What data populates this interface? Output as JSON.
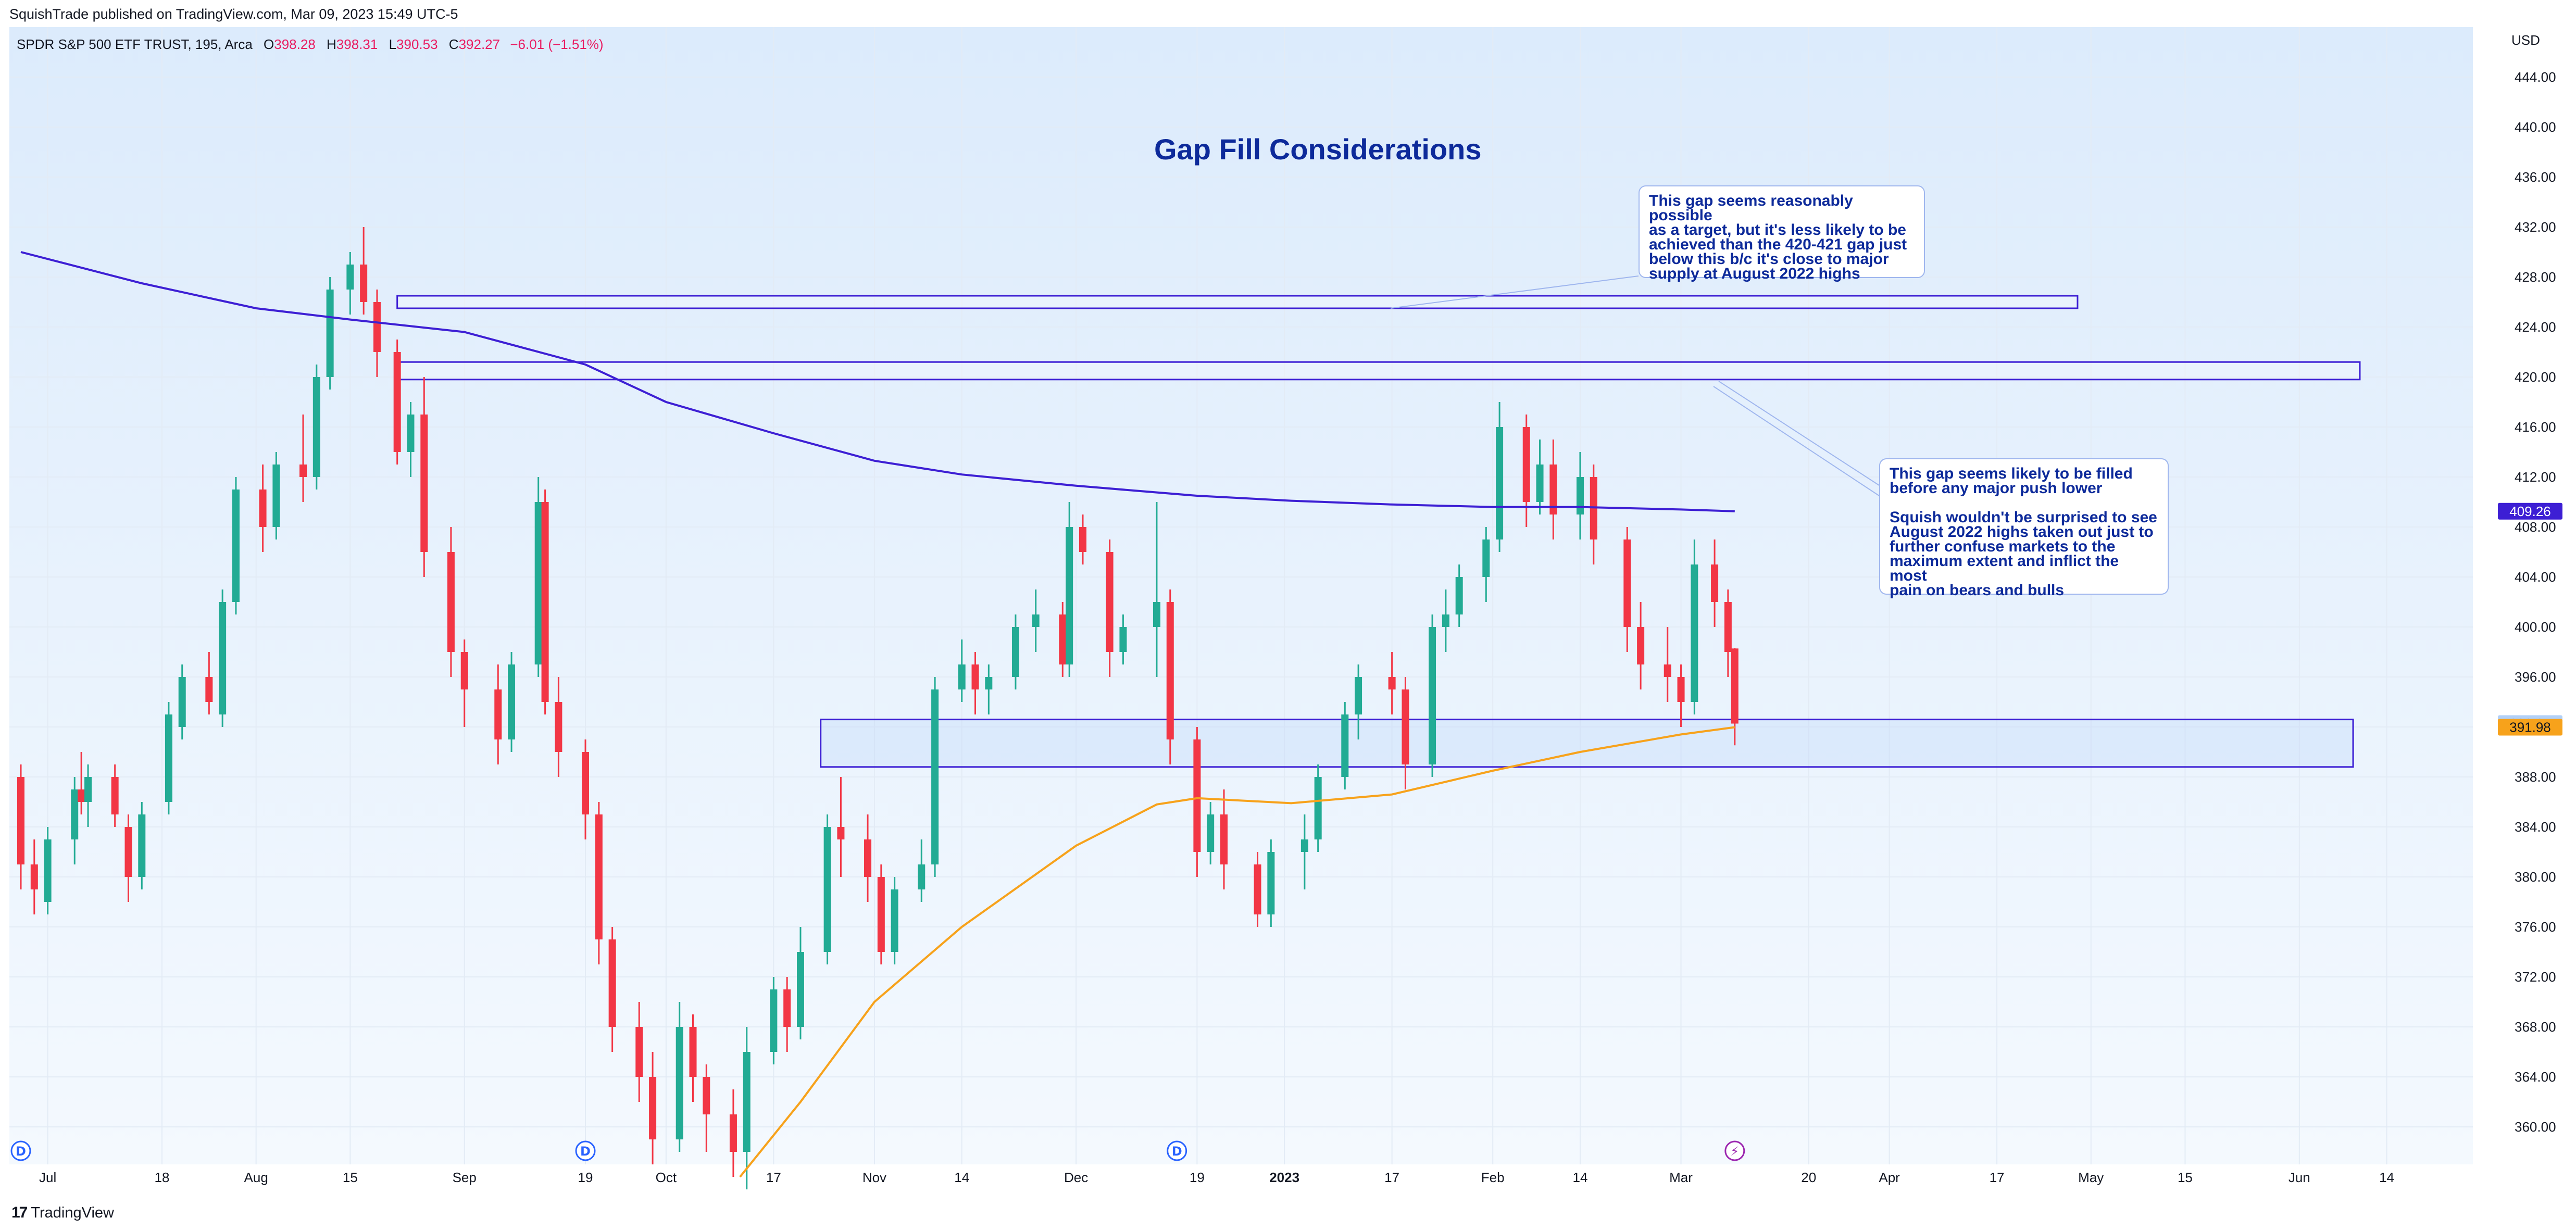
{
  "header": {
    "published": "SquishTrade published on TradingView.com, Mar 09, 2023 15:49 UTC-5"
  },
  "legend": {
    "symbol": "SPDR S&P 500 ETF TRUST, 195, Arca",
    "o_label": "O",
    "o": "398.28",
    "h_label": "H",
    "h": "398.31",
    "l_label": "L",
    "l": "390.53",
    "c_label": "C",
    "c": "392.27",
    "change": "−6.01 (−1.51%)"
  },
  "footer": {
    "brand": "TradingView",
    "logo": "17"
  },
  "colors": {
    "up": "#22ab94",
    "down": "#f23645",
    "ma_long": "#3d1fd4",
    "ma_short": "#f7a21b",
    "box": "#3d1fd4",
    "annotation": "#0d2a9a"
  },
  "annotations": {
    "note1": "This gap seems reasonably possible\nas a target, but it's less likely to be\nachieved than the 420-421 gap just\nbelow this b/c it's close to major\nsupply at August 2022 highs",
    "note2": "This gap seems likely to be filled\nbefore any major push lower\n\nSquish wouldn't be surprised to see\nAugust 2022 highs taken out just to\nfurther confuse markets to the\nmaximum extent and inflict the most\npain on bears and bulls"
  },
  "chart_data": {
    "type": "candlestick",
    "title": "Gap Fill Considerations",
    "currency": "USD",
    "ylim": [
      357,
      448
    ],
    "y_ticks": [
      "360.00",
      "364.00",
      "368.00",
      "372.00",
      "376.00",
      "380.00",
      "384.00",
      "388.00",
      "392.00",
      "396.00",
      "400.00",
      "404.00",
      "408.00",
      "412.00",
      "416.00",
      "420.00",
      "424.00",
      "428.00",
      "432.00",
      "436.00",
      "440.00",
      "444.00"
    ],
    "x_ticks": [
      {
        "label": "Jul",
        "date": "2022-07-01"
      },
      {
        "label": "18",
        "date": "2022-07-18"
      },
      {
        "label": "Aug",
        "date": "2022-08-01"
      },
      {
        "label": "15",
        "date": "2022-08-15"
      },
      {
        "label": "Sep",
        "date": "2022-09-01"
      },
      {
        "label": "19",
        "date": "2022-09-19"
      },
      {
        "label": "Oct",
        "date": "2022-10-01"
      },
      {
        "label": "17",
        "date": "2022-10-17"
      },
      {
        "label": "Nov",
        "date": "2022-11-01"
      },
      {
        "label": "14",
        "date": "2022-11-14"
      },
      {
        "label": "Dec",
        "date": "2022-12-01"
      },
      {
        "label": "19",
        "date": "2022-12-19"
      },
      {
        "label": "2023",
        "date": "2023-01-01",
        "bold": true
      },
      {
        "label": "17",
        "date": "2023-01-17"
      },
      {
        "label": "Feb",
        "date": "2023-02-01"
      },
      {
        "label": "14",
        "date": "2023-02-14"
      },
      {
        "label": "Mar",
        "date": "2023-03-01"
      },
      {
        "label": "20",
        "date": "2023-03-20"
      },
      {
        "label": "Apr",
        "date": "2023-04-01"
      },
      {
        "label": "17",
        "date": "2023-04-17"
      },
      {
        "label": "May",
        "date": "2023-05-01"
      },
      {
        "label": "15",
        "date": "2023-05-15"
      },
      {
        "label": "Jun",
        "date": "2023-06-01"
      },
      {
        "label": "14",
        "date": "2023-06-14"
      }
    ],
    "price_labels": [
      {
        "value": "409.26",
        "y": 409.26,
        "bg": "#3d1fd4",
        "fg": "#ffffff"
      },
      {
        "value": "392.27",
        "y": 392.27,
        "bg": "#b2d0f7",
        "fg": "#131722"
      },
      {
        "value": "391.98",
        "y": 391.98,
        "bg": "#f7a21b",
        "fg": "#131722"
      }
    ],
    "event_markers": [
      {
        "label": "D",
        "date": "2022-06-27"
      },
      {
        "label": "D",
        "date": "2022-09-19"
      },
      {
        "label": "D",
        "date": "2022-12-16"
      },
      {
        "label": "⚡",
        "date": "2023-03-09"
      }
    ],
    "gap_zones": [
      {
        "date_from": "2022-08-22",
        "date_to": "2023-04-29",
        "y_top": 426.5,
        "y_bottom": 425.5
      },
      {
        "date_from": "2022-08-22",
        "date_to": "2023-06-10",
        "y_top": 421.2,
        "y_bottom": 419.8
      },
      {
        "date_from": "2022-10-24",
        "date_to": "2023-06-09",
        "y_top": 392.6,
        "y_bottom": 388.8
      }
    ],
    "candles": [
      [
        "2022-06-27",
        388,
        389,
        379,
        381
      ],
      [
        "2022-06-29",
        381,
        383,
        377,
        379
      ],
      [
        "2022-07-01",
        378,
        384,
        377,
        383
      ],
      [
        "2022-07-05",
        383,
        388,
        381,
        387
      ],
      [
        "2022-07-06",
        387,
        390,
        385,
        386
      ],
      [
        "2022-07-07",
        386,
        389,
        384,
        388
      ],
      [
        "2022-07-11",
        388,
        389,
        384,
        385
      ],
      [
        "2022-07-13",
        384,
        385,
        378,
        380
      ],
      [
        "2022-07-15",
        380,
        386,
        379,
        385
      ],
      [
        "2022-07-19",
        386,
        394,
        385,
        393
      ],
      [
        "2022-07-21",
        392,
        397,
        391,
        396
      ],
      [
        "2022-07-25",
        396,
        398,
        393,
        394
      ],
      [
        "2022-07-27",
        393,
        403,
        392,
        402
      ],
      [
        "2022-07-29",
        402,
        412,
        401,
        411
      ],
      [
        "2022-08-02",
        411,
        413,
        406,
        408
      ],
      [
        "2022-08-04",
        408,
        414,
        407,
        413
      ],
      [
        "2022-08-08",
        413,
        417,
        410,
        412
      ],
      [
        "2022-08-10",
        412,
        421,
        411,
        420
      ],
      [
        "2022-08-12",
        420,
        428,
        419,
        427
      ],
      [
        "2022-08-15",
        427,
        430,
        425,
        429
      ],
      [
        "2022-08-17",
        429,
        432,
        425,
        426
      ],
      [
        "2022-08-19",
        426,
        427,
        420,
        422
      ],
      [
        "2022-08-22",
        422,
        423,
        413,
        414
      ],
      [
        "2022-08-24",
        414,
        418,
        412,
        417
      ],
      [
        "2022-08-26",
        417,
        420,
        404,
        406
      ],
      [
        "2022-08-30",
        406,
        408,
        396,
        398
      ],
      [
        "2022-09-01",
        398,
        399,
        392,
        395
      ],
      [
        "2022-09-06",
        395,
        397,
        389,
        391
      ],
      [
        "2022-09-08",
        391,
        398,
        390,
        397
      ],
      [
        "2022-09-12",
        397,
        412,
        396,
        410
      ],
      [
        "2022-09-13",
        410,
        411,
        393,
        394
      ],
      [
        "2022-09-15",
        394,
        396,
        388,
        390
      ],
      [
        "2022-09-19",
        390,
        391,
        383,
        385
      ],
      [
        "2022-09-21",
        385,
        386,
        373,
        375
      ],
      [
        "2022-09-23",
        375,
        376,
        366,
        368
      ],
      [
        "2022-09-27",
        368,
        370,
        362,
        364
      ],
      [
        "2022-09-29",
        364,
        366,
        357,
        359
      ],
      [
        "2022-10-03",
        359,
        370,
        358,
        368
      ],
      [
        "2022-10-05",
        368,
        369,
        362,
        364
      ],
      [
        "2022-10-07",
        364,
        365,
        358,
        361
      ],
      [
        "2022-10-11",
        361,
        363,
        356,
        358
      ],
      [
        "2022-10-13",
        358,
        368,
        355,
        366
      ],
      [
        "2022-10-17",
        366,
        372,
        365,
        371
      ],
      [
        "2022-10-19",
        371,
        372,
        366,
        368
      ],
      [
        "2022-10-21",
        368,
        376,
        367,
        374
      ],
      [
        "2022-10-25",
        374,
        385,
        373,
        384
      ],
      [
        "2022-10-27",
        384,
        388,
        380,
        383
      ],
      [
        "2022-10-31",
        383,
        385,
        378,
        380
      ],
      [
        "2022-11-02",
        380,
        381,
        373,
        374
      ],
      [
        "2022-11-04",
        374,
        380,
        373,
        379
      ],
      [
        "2022-11-08",
        379,
        383,
        378,
        381
      ],
      [
        "2022-11-10",
        381,
        396,
        380,
        395
      ],
      [
        "2022-11-14",
        395,
        399,
        394,
        397
      ],
      [
        "2022-11-16",
        397,
        398,
        393,
        395
      ],
      [
        "2022-11-18",
        395,
        397,
        393,
        396
      ],
      [
        "2022-11-22",
        396,
        401,
        395,
        400
      ],
      [
        "2022-11-25",
        400,
        403,
        398,
        401
      ],
      [
        "2022-11-29",
        401,
        402,
        396,
        397
      ],
      [
        "2022-11-30",
        397,
        410,
        396,
        408
      ],
      [
        "2022-12-02",
        408,
        409,
        405,
        406
      ],
      [
        "2022-12-06",
        406,
        407,
        396,
        398
      ],
      [
        "2022-12-08",
        398,
        401,
        397,
        400
      ],
      [
        "2022-12-13",
        400,
        410,
        396,
        402
      ],
      [
        "2022-12-15",
        402,
        403,
        389,
        391
      ],
      [
        "2022-12-19",
        391,
        392,
        380,
        382
      ],
      [
        "2022-12-21",
        382,
        386,
        381,
        385
      ],
      [
        "2022-12-23",
        385,
        387,
        379,
        381
      ],
      [
        "2022-12-28",
        381,
        382,
        376,
        377
      ],
      [
        "2022-12-30",
        377,
        383,
        376,
        382
      ],
      [
        "2023-01-04",
        382,
        385,
        379,
        383
      ],
      [
        "2023-01-06",
        383,
        389,
        382,
        388
      ],
      [
        "2023-01-10",
        388,
        394,
        387,
        393
      ],
      [
        "2023-01-12",
        393,
        397,
        391,
        396
      ],
      [
        "2023-01-17",
        396,
        398,
        393,
        395
      ],
      [
        "2023-01-19",
        395,
        396,
        387,
        389
      ],
      [
        "2023-01-23",
        389,
        401,
        388,
        400
      ],
      [
        "2023-01-25",
        400,
        403,
        398,
        401
      ],
      [
        "2023-01-27",
        401,
        405,
        400,
        404
      ],
      [
        "2023-01-31",
        404,
        408,
        402,
        407
      ],
      [
        "2023-02-02",
        407,
        418,
        406,
        416
      ],
      [
        "2023-02-06",
        416,
        417,
        408,
        410
      ],
      [
        "2023-02-08",
        410,
        415,
        409,
        413
      ],
      [
        "2023-02-10",
        413,
        415,
        407,
        409
      ],
      [
        "2023-02-14",
        409,
        414,
        407,
        412
      ],
      [
        "2023-02-16",
        412,
        413,
        405,
        407
      ],
      [
        "2023-02-21",
        407,
        408,
        398,
        400
      ],
      [
        "2023-02-23",
        400,
        402,
        395,
        397
      ],
      [
        "2023-02-27",
        397,
        400,
        394,
        396
      ],
      [
        "2023-03-01",
        396,
        397,
        392,
        394
      ],
      [
        "2023-03-03",
        394,
        407,
        393,
        405
      ],
      [
        "2023-03-06",
        405,
        407,
        400,
        402
      ],
      [
        "2023-03-08",
        402,
        403,
        396,
        398
      ],
      [
        "2023-03-09",
        398.28,
        398.31,
        390.53,
        392.27
      ]
    ],
    "series": [
      {
        "name": "",
        "type": "line",
        "color": "#3d1fd4",
        "points": [
          [
            "2022-06-27",
            430
          ],
          [
            "2022-07-15",
            427.5
          ],
          [
            "2022-08-01",
            425.5
          ],
          [
            "2022-08-15",
            424.6
          ],
          [
            "2022-09-01",
            423.6
          ],
          [
            "2022-09-19",
            421
          ],
          [
            "2022-10-01",
            418
          ],
          [
            "2022-10-17",
            415.5
          ],
          [
            "2022-11-01",
            413.3
          ],
          [
            "2022-11-14",
            412.2
          ],
          [
            "2022-12-01",
            411.3
          ],
          [
            "2022-12-19",
            410.5
          ],
          [
            "2023-01-02",
            410.1
          ],
          [
            "2023-01-17",
            409.8
          ],
          [
            "2023-02-01",
            409.6
          ],
          [
            "2023-02-14",
            409.6
          ],
          [
            "2023-03-01",
            409.4
          ],
          [
            "2023-03-09",
            409.26
          ]
        ]
      },
      {
        "name": "",
        "type": "line",
        "color": "#f7a21b",
        "points": [
          [
            "2022-10-12",
            356
          ],
          [
            "2022-10-21",
            362
          ],
          [
            "2022-11-01",
            370
          ],
          [
            "2022-11-14",
            376
          ],
          [
            "2022-12-01",
            382.5
          ],
          [
            "2022-12-13",
            385.8
          ],
          [
            "2022-12-19",
            386.3
          ],
          [
            "2023-01-02",
            385.9
          ],
          [
            "2023-01-17",
            386.6
          ],
          [
            "2023-02-01",
            388.5
          ],
          [
            "2023-02-14",
            390
          ],
          [
            "2023-03-01",
            391.4
          ],
          [
            "2023-03-09",
            391.98
          ]
        ]
      }
    ]
  }
}
